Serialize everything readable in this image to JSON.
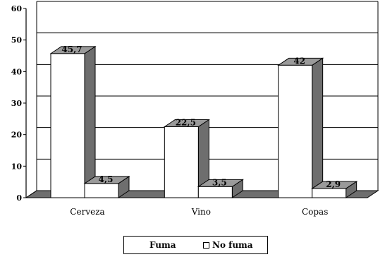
{
  "chart_data": {
    "type": "bar",
    "title": "",
    "xlabel": "",
    "ylabel": "",
    "categories": [
      "Cerveza",
      "Vino",
      "Copas"
    ],
    "series": [
      {
        "name": "Fuma",
        "values": [
          45.7,
          22.5,
          42
        ],
        "labels": [
          "45,7",
          "22,5",
          "42"
        ],
        "color": "#ffffff"
      },
      {
        "name": "No fuma",
        "values": [
          4.5,
          3.5,
          2.9
        ],
        "labels": [
          "4,5",
          "3,5",
          "2,9"
        ],
        "color": "#ffffff"
      }
    ],
    "ylim": [
      0,
      60
    ],
    "yticks": [
      0,
      10,
      20,
      30,
      40,
      50,
      60
    ],
    "grid": true,
    "legend_position": "bottom",
    "side_color": "#6e6e6e",
    "top_color": "#9a9a9a",
    "floor_color": "#6e6e6e"
  }
}
